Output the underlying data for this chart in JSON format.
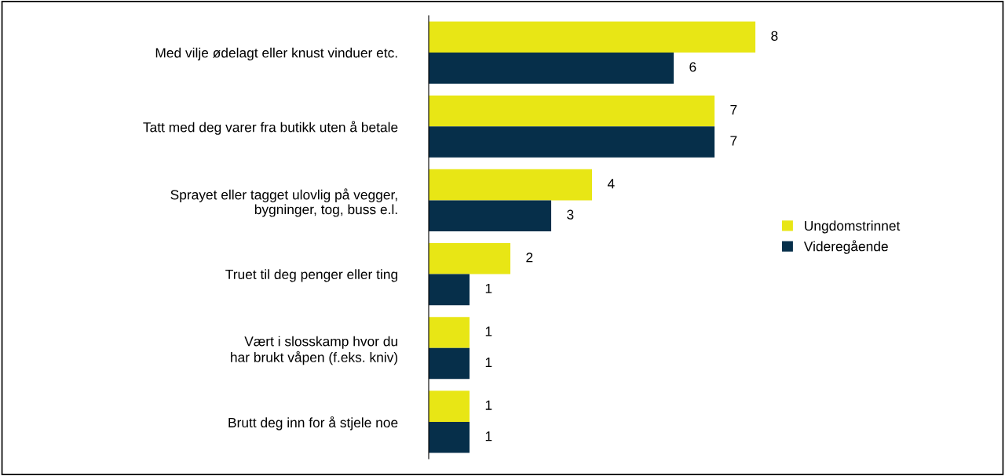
{
  "chart_data": {
    "type": "bar",
    "orientation": "horizontal",
    "tick_labels": "y",
    "data_labels": true,
    "legend": "right",
    "grid": false,
    "categories": [
      "Med vilje ødelagt eller knust vinduer etc.",
      "Tatt med deg varer fra butikk uten å betale",
      "Sprayet eller tagget ulovlig på vegger,\nbygninger, tog, buss e.l.",
      "Truet til deg penger eller ting",
      "Vært i slosskamp hvor du\nhar brukt våpen (f.eks. kniv)",
      "Brutt deg inn for å stjele noe"
    ],
    "series": [
      {
        "name": "Ungdomstrinnet",
        "color": "#e8e615",
        "values": [
          8,
          7,
          4,
          2,
          1,
          1
        ]
      },
      {
        "name": "Videregående",
        "color": "#062f4a",
        "values": [
          6,
          7,
          3,
          1,
          1,
          1
        ]
      }
    ]
  }
}
